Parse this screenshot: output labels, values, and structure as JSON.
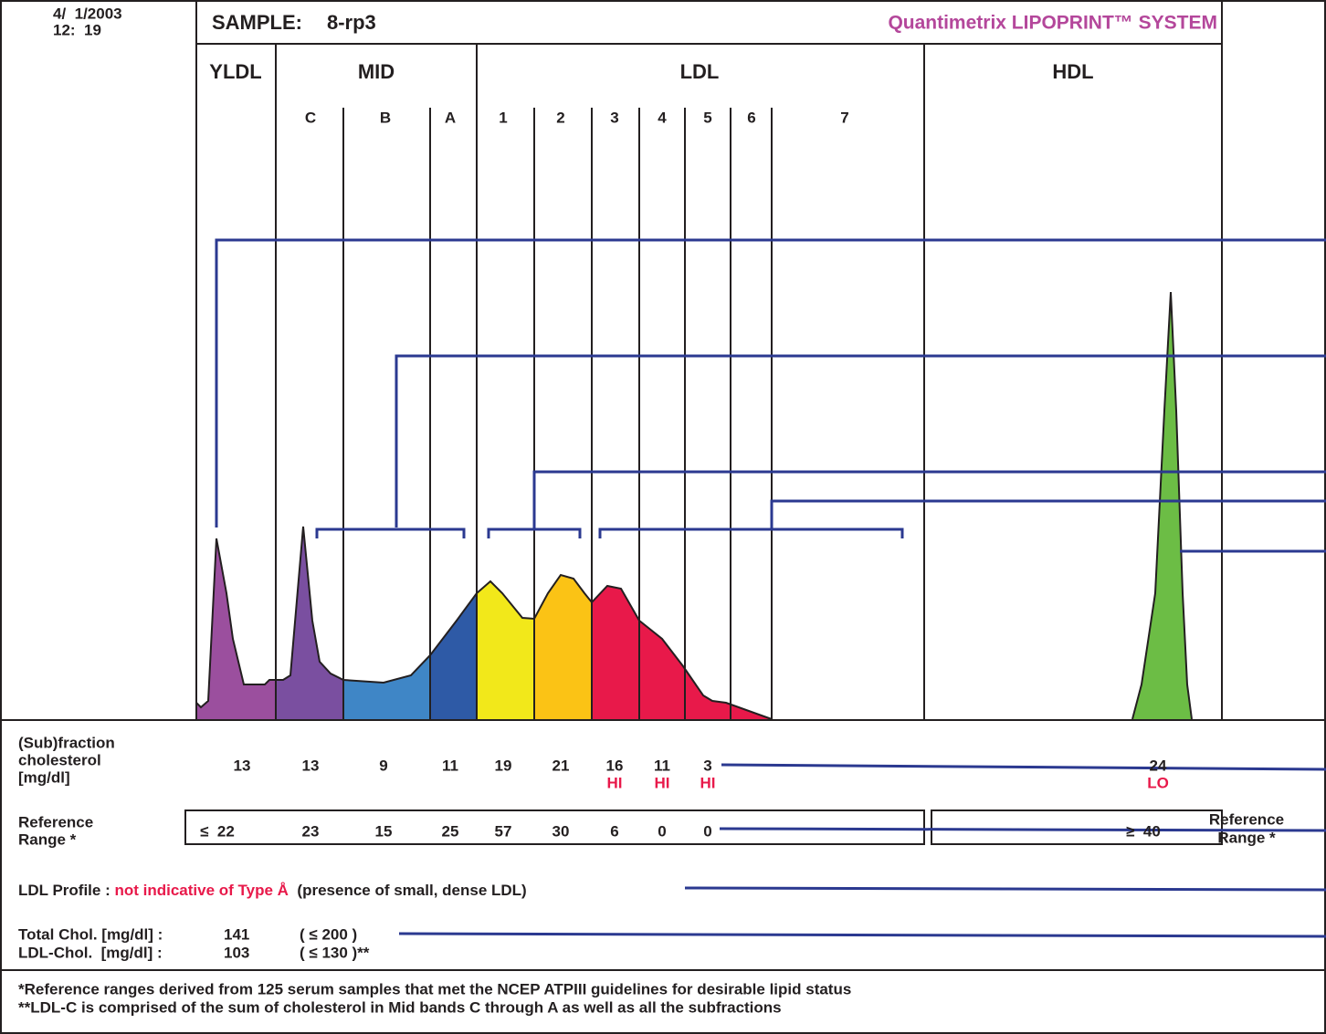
{
  "header": {
    "date": "4/  1/2003",
    "time": "12:  19",
    "sample_label": "SAMPLE:",
    "sample_id": "8-rp3",
    "system": "Quantimetrix LIPOPRINT™ SYSTEM"
  },
  "groups": [
    "YLDL",
    "MID",
    "LDL",
    "HDL"
  ],
  "bands": [
    "C",
    "B",
    "A",
    "1",
    "2",
    "3",
    "4",
    "5",
    "6",
    "7"
  ],
  "fraction": {
    "label": [
      "(Sub)fraction",
      "cholesterol",
      "[mg/dl]"
    ],
    "values": [
      13,
      13,
      9,
      11,
      19,
      21,
      16,
      11,
      3,
      24
    ],
    "flags": [
      "HI",
      "HI",
      "HI",
      "LO"
    ]
  },
  "reference": {
    "label": [
      "Reference",
      "Range *"
    ],
    "values": [
      "≤  22",
      "23",
      "15",
      "25",
      "57",
      "30",
      "6",
      "0",
      "0",
      "≥  40"
    ],
    "right_label": [
      "Reference",
      "Range *"
    ]
  },
  "profile": {
    "label": "LDL Profile :",
    "result": "not indicative of Type Å",
    "note": "(presence of small, dense LDL)"
  },
  "totals": [
    {
      "label": "Total Chol. [mg/dl] :",
      "value": "141",
      "range": "( ≤ 200 )"
    },
    {
      "label": "LDL-Chol.  [mg/dl] :",
      "value": "103",
      "range": "( ≤ 130 )**"
    }
  ],
  "footnotes": [
    "*Reference ranges derived from 125 serum samples that met the NCEP ATPIII guidelines for desirable lipid status",
    "**LDL-C is comprised of the sum of cholesterol in Mid bands C through A as well as all the subfractions"
  ]
}
